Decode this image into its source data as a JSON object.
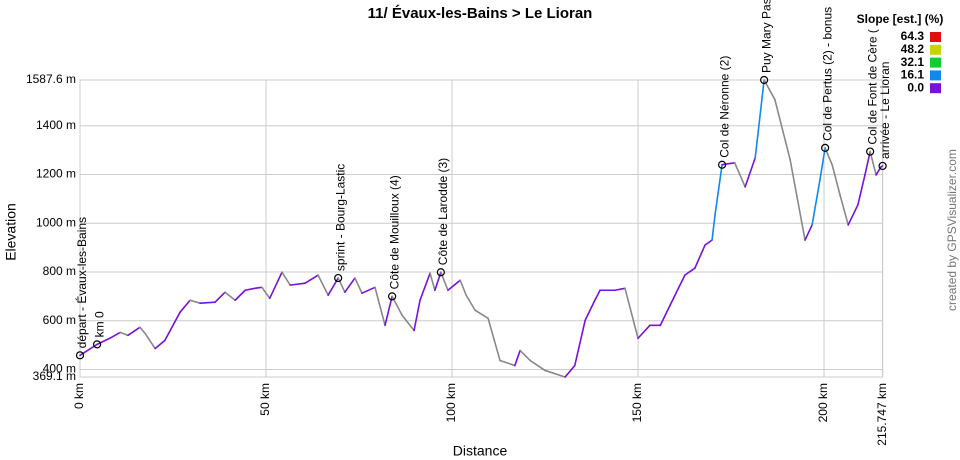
{
  "chart_data": {
    "type": "line",
    "title": "11/ Évaux-les-Bains > Le Lioran",
    "x_label": "Distance",
    "y_label": "Elevation",
    "credit": "created by GPSVisualizer.com",
    "x": [
      0,
      4.6,
      8,
      10.8,
      12.9,
      16.1,
      17.5,
      20.2,
      22.8,
      26.9,
      29.6,
      32.3,
      36.3,
      39,
      41.7,
      44.4,
      47,
      48.9,
      51,
      54.3,
      56.5,
      60.5,
      64,
      66.7,
      69.4,
      71.2,
      73.9,
      75.8,
      79.3,
      82,
      83.9,
      86.6,
      89.8,
      91.4,
      94.1,
      95.4,
      97,
      98.9,
      102.2,
      103.8,
      106.2,
      109.7,
      112.9,
      116.9,
      118.3,
      121,
      125,
      130.4,
      133,
      135.8,
      138.4,
      139.8,
      143.8,
      146.5,
      150,
      153.2,
      156,
      158.6,
      162.6,
      165.3,
      168,
      169.9,
      170.7,
      172.6,
      176,
      178.8,
      181.5,
      183.9,
      186.8,
      190.9,
      194.9,
      196.8,
      198.9,
      200.3,
      202.2,
      204.3,
      206.5,
      209.1,
      211,
      212.4,
      214,
      215.3,
      215.747
    ],
    "values": [
      458,
      503,
      528,
      552,
      540,
      573,
      548,
      486,
      519,
      635,
      684,
      672,
      676,
      717,
      684,
      725,
      733,
      737,
      692,
      799,
      746,
      754,
      787,
      705,
      775,
      717,
      775,
      713,
      737,
      581,
      700,
      622,
      560,
      684,
      795,
      725,
      799,
      725,
      766,
      705,
      643,
      610,
      437,
      416,
      478,
      437,
      396,
      369.1,
      416,
      602,
      684,
      725,
      725,
      733,
      528,
      581,
      581,
      663,
      787,
      816,
      910,
      931,
      1034,
      1240,
      1248,
      1149,
      1268,
      1587.6,
      1507,
      1260,
      931,
      993,
      1178,
      1309,
      1239,
      1116,
      993,
      1075,
      1198,
      1294,
      1198,
      1231,
      1235
    ],
    "descent_color": "#888888",
    "xlim": [
      0,
      215.747
    ],
    "ylim": [
      369.1,
      1587.6
    ],
    "xticks": [
      {
        "value": 0,
        "label": "0 km"
      },
      {
        "value": 50,
        "label": "50 km"
      },
      {
        "value": 100,
        "label": "100 km"
      },
      {
        "value": 150,
        "label": "150 km"
      },
      {
        "value": 200,
        "label": "200 km"
      },
      {
        "value": 215.747,
        "label": "215.747 km"
      }
    ],
    "yticks": [
      {
        "value": 369.1,
        "label": "369.1 m"
      },
      {
        "value": 400,
        "label": "400 m"
      },
      {
        "value": 600,
        "label": "600 m"
      },
      {
        "value": 800,
        "label": "800 m"
      },
      {
        "value": 1000,
        "label": "1000 m"
      },
      {
        "value": 1200,
        "label": "1200 m"
      },
      {
        "value": 1400,
        "label": "1400 m"
      },
      {
        "value": 1587.6,
        "label": "1587.6 m"
      }
    ],
    "grid": true,
    "waypoints": [
      {
        "label": "départ - Évaux-les-Bains",
        "x": 0,
        "y": 458
      },
      {
        "label": "km 0",
        "x": 4.6,
        "y": 503
      },
      {
        "label": "sprint - Bourg-Lastic",
        "x": 69.4,
        "y": 775
      },
      {
        "label": "Côte de Mouilloux (4)",
        "x": 83.9,
        "y": 700
      },
      {
        "label": "Côte de Larodde (3)",
        "x": 97,
        "y": 799
      },
      {
        "label": "Col de Néronne (2)",
        "x": 172.6,
        "y": 1240
      },
      {
        "label": "Puy Mary Pas",
        "x": 183.9,
        "y": 1587.6
      },
      {
        "label": "Col de Pertus (2) - bonus",
        "x": 200.3,
        "y": 1309
      },
      {
        "label": "Col de Font de Cère (",
        "x": 212.4,
        "y": 1294
      },
      {
        "label": "arrivée - Le Lioran",
        "x": 215.747,
        "y": 1235
      }
    ],
    "legend": {
      "title": "Slope [est.] (%)",
      "entries": [
        {
          "value": 64.3,
          "label": "64.3",
          "color": "#dd1111"
        },
        {
          "value": 48.2,
          "label": "48.2",
          "color": "#c8d400"
        },
        {
          "value": 32.1,
          "label": "32.1",
          "color": "#11cc33"
        },
        {
          "value": 16.1,
          "label": "16.1",
          "color": "#1188ee"
        },
        {
          "value": 0,
          "label": "0.0",
          "color": "#7711dd"
        }
      ]
    }
  }
}
